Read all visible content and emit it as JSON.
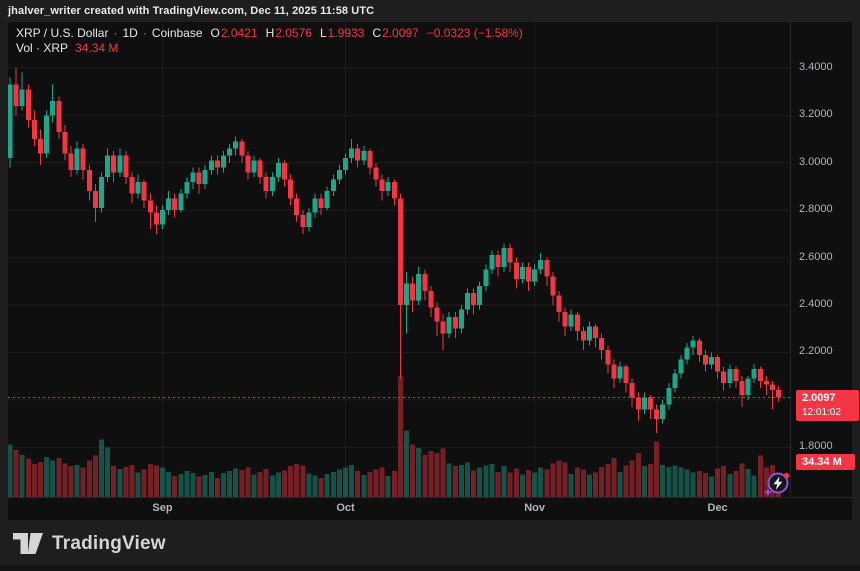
{
  "attribution": {
    "text": "jhalver_writer created with TradingView.com, Dec 11, 2025 11:58 UTC"
  },
  "legend": {
    "symbol": "XRP / U.S. Dollar",
    "separator": "·",
    "interval": "1D",
    "exchange": "Coinbase",
    "o_label": "O",
    "o_value": "2.0421",
    "h_label": "H",
    "h_value": "2.0576",
    "l_label": "L",
    "l_value": "1.9933",
    "c_label": "C",
    "c_value": "2.0097",
    "change": "−0.0323 (−1.58%)",
    "volume_label": "Vol · XRP",
    "volume_value": "34.34 M"
  },
  "price_axis": {
    "current_price_badge": {
      "price": "2.0097",
      "countdown": "12:01:02"
    },
    "volume_badge": "34.34 M"
  },
  "footer": {
    "brand": "TradingView"
  },
  "colors": {
    "candle_up": "#1ea58a",
    "candle_down": "#f23645",
    "accent_red": "#f23645",
    "axis_text": "#b2b5be",
    "chart_bg": "#0f0f10",
    "page_bg": "#1e1e1e"
  },
  "chart_data": {
    "type": "candlestick+volume",
    "title": "XRP / U.S. Dollar · 1D · Coinbase",
    "symbol": "XRP/USD",
    "interval": "1D",
    "exchange": "Coinbase",
    "last": {
      "open": 2.0421,
      "high": 2.0576,
      "low": 1.9933,
      "close": 2.0097,
      "change": -0.0323,
      "change_pct": -1.58,
      "volume_m": 34.34
    },
    "current_price": 2.0097,
    "grid_ticks": [
      3.4,
      3.2,
      3.0,
      2.8,
      2.6,
      2.4,
      2.2,
      2.0,
      1.8
    ],
    "price_labels": [
      {
        "value": 3.4,
        "text": "3.4000"
      },
      {
        "value": 3.2,
        "text": "3.2000"
      },
      {
        "value": 3.0,
        "text": "3.0000"
      },
      {
        "value": 2.8,
        "text": "2.8000"
      },
      {
        "value": 2.6,
        "text": "2.6000"
      },
      {
        "value": 2.4,
        "text": "2.4000"
      },
      {
        "value": 2.2,
        "text": "2.2000"
      },
      {
        "value": 1.8,
        "text": "1.8000"
      }
    ],
    "months": [
      {
        "label": "Sep",
        "day_index": 25
      },
      {
        "label": "Oct",
        "day_index": 55
      },
      {
        "label": "Nov",
        "day_index": 86
      },
      {
        "label": "Dec",
        "day_index": 116
      }
    ],
    "volume_unit": "M",
    "candles_format": [
      "open",
      "high",
      "low",
      "close",
      "volume_m"
    ],
    "candles": [
      [
        3.02,
        3.36,
        2.98,
        3.33,
        150
      ],
      [
        3.33,
        3.4,
        3.2,
        3.24,
        135
      ],
      [
        3.24,
        3.38,
        3.22,
        3.31,
        120
      ],
      [
        3.31,
        3.33,
        3.15,
        3.18,
        110
      ],
      [
        3.18,
        3.22,
        3.07,
        3.1,
        95
      ],
      [
        3.1,
        3.14,
        2.99,
        3.04,
        100
      ],
      [
        3.04,
        3.22,
        3.02,
        3.2,
        115
      ],
      [
        3.2,
        3.33,
        3.17,
        3.26,
        105
      ],
      [
        3.26,
        3.28,
        3.1,
        3.13,
        112
      ],
      [
        3.13,
        3.16,
        3.01,
        3.04,
        96
      ],
      [
        3.04,
        3.07,
        2.94,
        2.97,
        88
      ],
      [
        2.97,
        3.09,
        2.95,
        3.06,
        92
      ],
      [
        3.06,
        3.08,
        2.93,
        2.97,
        85
      ],
      [
        2.97,
        2.99,
        2.84,
        2.88,
        104
      ],
      [
        2.88,
        2.91,
        2.75,
        2.81,
        118
      ],
      [
        2.81,
        2.96,
        2.79,
        2.94,
        165
      ],
      [
        2.94,
        3.06,
        2.92,
        3.03,
        142
      ],
      [
        3.03,
        3.05,
        2.92,
        2.96,
        88
      ],
      [
        2.96,
        3.06,
        2.94,
        3.03,
        80
      ],
      [
        3.03,
        3.05,
        2.91,
        2.94,
        86
      ],
      [
        2.94,
        2.96,
        2.83,
        2.87,
        92
      ],
      [
        2.87,
        2.95,
        2.85,
        2.92,
        70
      ],
      [
        2.92,
        2.93,
        2.81,
        2.84,
        78
      ],
      [
        2.84,
        2.87,
        2.72,
        2.79,
        95
      ],
      [
        2.79,
        2.82,
        2.7,
        2.74,
        90
      ],
      [
        2.74,
        2.82,
        2.72,
        2.8,
        84
      ],
      [
        2.8,
        2.88,
        2.78,
        2.85,
        72
      ],
      [
        2.85,
        2.87,
        2.77,
        2.8,
        60
      ],
      [
        2.8,
        2.89,
        2.79,
        2.87,
        66
      ],
      [
        2.87,
        2.94,
        2.85,
        2.92,
        74
      ],
      [
        2.92,
        2.98,
        2.89,
        2.96,
        68
      ],
      [
        2.96,
        2.98,
        2.87,
        2.91,
        58
      ],
      [
        2.91,
        2.99,
        2.89,
        2.97,
        63
      ],
      [
        2.97,
        3.03,
        2.95,
        3.01,
        71
      ],
      [
        3.01,
        3.03,
        2.95,
        2.98,
        55
      ],
      [
        2.98,
        3.05,
        2.96,
        3.03,
        69
      ],
      [
        3.03,
        3.08,
        3.0,
        3.06,
        75
      ],
      [
        3.06,
        3.11,
        3.03,
        3.09,
        82
      ],
      [
        3.09,
        3.1,
        3.0,
        3.03,
        77
      ],
      [
        3.03,
        3.05,
        2.93,
        2.96,
        85
      ],
      [
        2.96,
        3.03,
        2.94,
        3.01,
        64
      ],
      [
        3.01,
        3.02,
        2.91,
        2.94,
        72
      ],
      [
        2.94,
        2.96,
        2.85,
        2.88,
        80
      ],
      [
        2.88,
        2.96,
        2.86,
        2.94,
        62
      ],
      [
        2.94,
        3.02,
        2.92,
        3.0,
        70
      ],
      [
        3.0,
        3.01,
        2.9,
        2.93,
        76
      ],
      [
        2.93,
        2.95,
        2.82,
        2.85,
        88
      ],
      [
        2.85,
        2.87,
        2.75,
        2.78,
        95
      ],
      [
        2.78,
        2.8,
        2.7,
        2.73,
        90
      ],
      [
        2.73,
        2.81,
        2.71,
        2.79,
        67
      ],
      [
        2.79,
        2.87,
        2.77,
        2.85,
        61
      ],
      [
        2.85,
        2.87,
        2.78,
        2.81,
        54
      ],
      [
        2.81,
        2.9,
        2.8,
        2.88,
        66
      ],
      [
        2.88,
        2.95,
        2.86,
        2.93,
        72
      ],
      [
        2.93,
        2.99,
        2.91,
        2.97,
        78
      ],
      [
        2.97,
        3.04,
        2.95,
        3.02,
        84
      ],
      [
        3.02,
        3.1,
        3.0,
        3.06,
        92
      ],
      [
        3.06,
        3.08,
        2.98,
        3.01,
        75
      ],
      [
        3.01,
        3.07,
        2.99,
        3.05,
        63
      ],
      [
        3.05,
        3.06,
        2.95,
        2.98,
        72
      ],
      [
        2.98,
        3.0,
        2.9,
        2.93,
        78
      ],
      [
        2.93,
        2.95,
        2.84,
        2.88,
        85
      ],
      [
        2.88,
        2.94,
        2.86,
        2.92,
        60
      ],
      [
        2.92,
        2.93,
        2.82,
        2.85,
        74
      ],
      [
        2.85,
        2.87,
        2.09,
        2.4,
        345
      ],
      [
        2.4,
        2.54,
        2.28,
        2.49,
        190
      ],
      [
        2.49,
        2.52,
        2.37,
        2.42,
        150
      ],
      [
        2.42,
        2.56,
        2.4,
        2.53,
        140
      ],
      [
        2.53,
        2.55,
        2.42,
        2.46,
        120
      ],
      [
        2.46,
        2.48,
        2.35,
        2.39,
        132
      ],
      [
        2.39,
        2.41,
        2.27,
        2.33,
        126
      ],
      [
        2.33,
        2.36,
        2.21,
        2.28,
        138
      ],
      [
        2.28,
        2.37,
        2.26,
        2.35,
        96
      ],
      [
        2.35,
        2.37,
        2.26,
        2.3,
        88
      ],
      [
        2.3,
        2.4,
        2.28,
        2.38,
        92
      ],
      [
        2.38,
        2.47,
        2.36,
        2.45,
        98
      ],
      [
        2.45,
        2.47,
        2.36,
        2.4,
        76
      ],
      [
        2.4,
        2.5,
        2.38,
        2.48,
        84
      ],
      [
        2.48,
        2.57,
        2.46,
        2.55,
        90
      ],
      [
        2.55,
        2.63,
        2.53,
        2.61,
        95
      ],
      [
        2.61,
        2.63,
        2.52,
        2.56,
        72
      ],
      [
        2.56,
        2.66,
        2.54,
        2.64,
        88
      ],
      [
        2.64,
        2.66,
        2.54,
        2.58,
        70
      ],
      [
        2.58,
        2.6,
        2.47,
        2.51,
        82
      ],
      [
        2.51,
        2.58,
        2.49,
        2.56,
        64
      ],
      [
        2.56,
        2.58,
        2.46,
        2.5,
        77
      ],
      [
        2.5,
        2.57,
        2.48,
        2.55,
        70
      ],
      [
        2.55,
        2.62,
        2.53,
        2.59,
        85
      ],
      [
        2.59,
        2.6,
        2.48,
        2.52,
        79
      ],
      [
        2.52,
        2.54,
        2.4,
        2.44,
        96
      ],
      [
        2.44,
        2.46,
        2.33,
        2.37,
        104
      ],
      [
        2.37,
        2.39,
        2.27,
        2.31,
        98
      ],
      [
        2.31,
        2.38,
        2.29,
        2.36,
        66
      ],
      [
        2.36,
        2.37,
        2.25,
        2.29,
        84
      ],
      [
        2.29,
        2.31,
        2.21,
        2.25,
        78
      ],
      [
        2.25,
        2.33,
        2.23,
        2.31,
        64
      ],
      [
        2.31,
        2.32,
        2.22,
        2.26,
        70
      ],
      [
        2.26,
        2.28,
        2.17,
        2.21,
        86
      ],
      [
        2.21,
        2.23,
        2.11,
        2.15,
        94
      ],
      [
        2.15,
        2.17,
        2.05,
        2.09,
        112
      ],
      [
        2.09,
        2.16,
        2.07,
        2.14,
        72
      ],
      [
        2.14,
        2.15,
        2.03,
        2.07,
        90
      ],
      [
        2.07,
        2.09,
        1.97,
        2.01,
        105
      ],
      [
        2.01,
        2.03,
        1.91,
        1.96,
        126
      ],
      [
        1.96,
        2.03,
        1.94,
        2.01,
        88
      ],
      [
        2.01,
        2.02,
        1.92,
        1.96,
        95
      ],
      [
        1.96,
        1.98,
        1.86,
        1.92,
        158
      ],
      [
        1.92,
        2.0,
        1.9,
        1.98,
        92
      ],
      [
        1.98,
        2.07,
        1.96,
        2.05,
        86
      ],
      [
        2.05,
        2.13,
        2.03,
        2.11,
        90
      ],
      [
        2.11,
        2.19,
        2.09,
        2.17,
        84
      ],
      [
        2.17,
        2.24,
        2.15,
        2.22,
        78
      ],
      [
        2.22,
        2.27,
        2.19,
        2.25,
        70
      ],
      [
        2.25,
        2.26,
        2.16,
        2.19,
        75
      ],
      [
        2.19,
        2.21,
        2.12,
        2.15,
        68
      ],
      [
        2.15,
        2.2,
        2.13,
        2.18,
        58
      ],
      [
        2.18,
        2.19,
        2.09,
        2.12,
        82
      ],
      [
        2.12,
        2.14,
        2.04,
        2.07,
        88
      ],
      [
        2.07,
        2.15,
        2.05,
        2.13,
        66
      ],
      [
        2.13,
        2.14,
        2.05,
        2.08,
        74
      ],
      [
        2.08,
        2.1,
        1.97,
        2.02,
        96
      ],
      [
        2.02,
        2.1,
        2.0,
        2.09,
        80
      ],
      [
        2.09,
        2.15,
        2.07,
        2.13,
        62
      ],
      [
        2.13,
        2.14,
        2.05,
        2.08,
        118
      ],
      [
        2.08,
        2.1,
        2.02,
        2.065,
        84
      ],
      [
        2.065,
        2.08,
        1.96,
        2.042,
        92
      ],
      [
        2.0421,
        2.0576,
        1.9933,
        2.0097,
        34.34
      ]
    ]
  }
}
